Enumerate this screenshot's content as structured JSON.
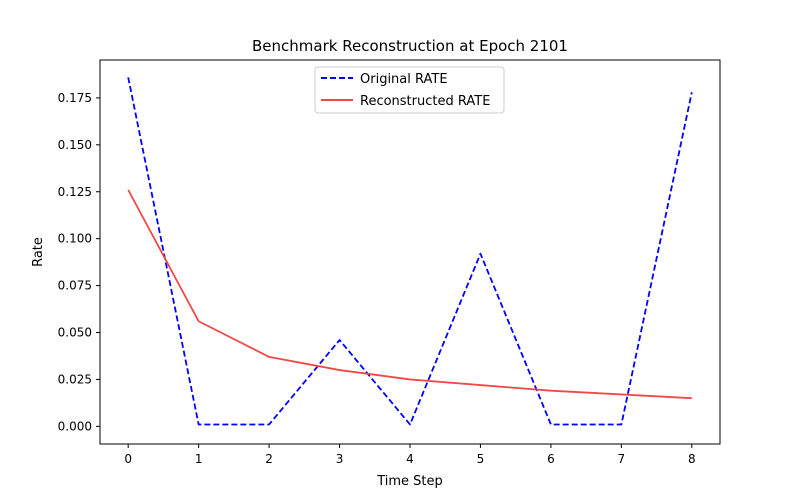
{
  "chart_data": {
    "type": "line",
    "title": "Benchmark Reconstruction at Epoch 2101",
    "xlabel": "Time Step",
    "ylabel": "Rate",
    "x": [
      0,
      1,
      2,
      3,
      4,
      5,
      6,
      7,
      8
    ],
    "xlim": [
      -0.4,
      8.4
    ],
    "ylim": [
      -0.0094,
      0.1952
    ],
    "xticks": [
      0,
      1,
      2,
      3,
      4,
      5,
      6,
      7,
      8
    ],
    "yticks": [
      0.0,
      0.025,
      0.05,
      0.075,
      0.1,
      0.125,
      0.15,
      0.175
    ],
    "ytick_labels": [
      "0.000",
      "0.025",
      "0.050",
      "0.075",
      "0.100",
      "0.125",
      "0.150",
      "0.175"
    ],
    "grid": false,
    "legend_position": "top-center",
    "series": [
      {
        "name": "Original RATE",
        "values": [
          0.186,
          0.001,
          0.001,
          0.046,
          0.001,
          0.092,
          0.001,
          0.001,
          0.178
        ],
        "color": "#0000ff",
        "style": "dashed"
      },
      {
        "name": "Reconstructed RATE",
        "values": [
          0.126,
          0.056,
          0.037,
          0.03,
          0.025,
          0.022,
          0.019,
          0.017,
          0.015
        ],
        "color": "#f04848",
        "style": "solid"
      }
    ]
  }
}
